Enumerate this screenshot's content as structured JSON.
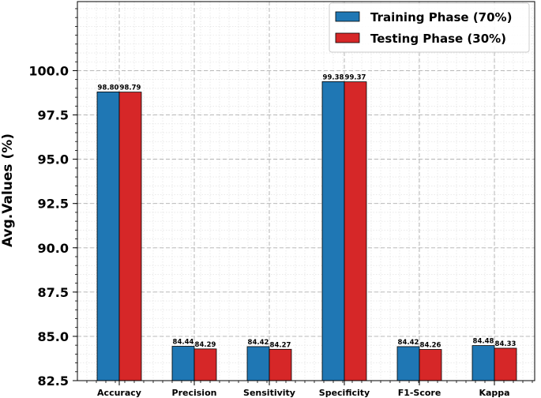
{
  "chart_data": {
    "type": "bar",
    "categories": [
      "Accuracy",
      "Precision",
      "Sensitivity",
      "Specificity",
      "F1-Score",
      "Kappa"
    ],
    "series": [
      {
        "name": "Training Phase (70%)",
        "color": "#1f77b4",
        "values": [
          98.8,
          84.44,
          84.42,
          99.38,
          84.42,
          84.48
        ],
        "labels": [
          "98.80",
          "84.44",
          "84.42",
          "99.38",
          "84.42",
          "84.48"
        ]
      },
      {
        "name": "Testing Phase (30%)",
        "color": "#d62728",
        "values": [
          98.79,
          84.29,
          84.27,
          99.37,
          84.26,
          84.33
        ],
        "labels": [
          "98.79",
          "84.29",
          "84.27",
          "99.37",
          "84.26",
          "84.33"
        ]
      }
    ],
    "ylabel": "Avg.Values (%)",
    "xlabel": "",
    "ylim": [
      82.5,
      103.9
    ],
    "yticks": [
      82.5,
      85.0,
      87.5,
      90.0,
      92.5,
      95.0,
      97.5,
      100.0
    ],
    "ytick_labels": [
      "82.5",
      "85.0",
      "87.5",
      "90.0",
      "92.5",
      "95.0",
      "97.5",
      "100.0"
    ],
    "grid": {
      "major": true,
      "minor": true,
      "style": "dashed"
    },
    "legend_position": "top-right"
  }
}
